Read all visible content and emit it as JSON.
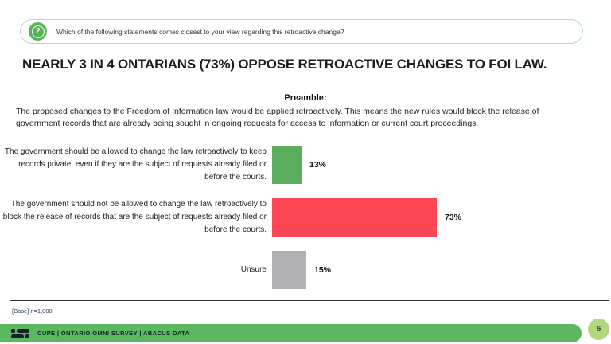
{
  "question_banner": {
    "icon": "question-bubble-icon",
    "icon_glyph": "?",
    "icon_color": "#56b456",
    "text": "Which of the following statements comes closest to your view regarding this retroactive change?"
  },
  "title": "NEARLY 3 IN 4 ONTARIANS (73%) OPPOSE RETROACTIVE CHANGES TO FOI LAW.",
  "preamble": {
    "heading": "Preamble:",
    "body": "The proposed changes to the Freedom of Information law would be applied retroactively. This means the new rules would block the release of government records that are already being sought in ongoing requests for access to information or current court proceedings."
  },
  "chart_data": {
    "type": "bar",
    "orientation": "horizontal",
    "title": "NEARLY 3 IN 4 ONTARIANS (73%) OPPOSE RETROACTIVE CHANGES TO FOI LAW.",
    "categories": [
      "The government should be allowed to change the law retroactively to keep records private, even if they are the subject of requests already filed or before the courts.",
      "The government should not be allowed to change the law retroactively to block the release of records that are the subject of requests already filed or before the courts.",
      "Unsure"
    ],
    "values": [
      13,
      73,
      15
    ],
    "value_labels": [
      "13%",
      "73%",
      "15%"
    ],
    "colors": [
      "#5aae5e",
      "#fc4653",
      "#b1b1b3"
    ],
    "xlim": [
      0,
      100
    ],
    "grid": false,
    "legend": false
  },
  "base_note": "[Base] n=1,000",
  "footer": {
    "logo": "abacus-data-logo",
    "text": "CUPE | ONTARIO OMNI SURVEY | ABACUS DATA",
    "bar_color": "#5cb860",
    "badge_color": "#b3d77e",
    "page_number": "6"
  }
}
